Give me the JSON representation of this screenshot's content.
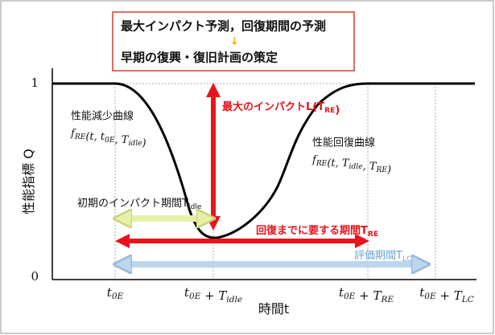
{
  "box": {
    "line1": "最大インパクト予測，回復期間の予測",
    "arrow": "↓",
    "line2": "早期の復興・復旧計画の策定"
  },
  "y_axis": {
    "label": [
      [
        "性能指標 "
      ],
      [
        "Q"
      ]
    ],
    "ticks": [
      "1",
      "0"
    ]
  },
  "x_axis": {
    "label": [
      [
        "時間"
      ],
      [
        "t"
      ]
    ],
    "ticks": [
      [
        [
          "t",
          "0E"
        ]
      ],
      [
        [
          "t",
          "0E"
        ],
        [
          " + T",
          "idle"
        ]
      ],
      [
        [
          "t",
          "0E"
        ],
        [
          " + T",
          "RE"
        ]
      ],
      [
        [
          "t",
          "0E"
        ],
        [
          " + T",
          "LC"
        ]
      ]
    ]
  },
  "decline": {
    "title": "性能減少曲線",
    "formula": [
      [
        "f",
        "RE"
      ],
      [
        "(t, t",
        "0E"
      ],
      [
        ", T",
        "idle"
      ],
      [
        ")"
      ]
    ]
  },
  "recovery": {
    "title": "性能回復曲線",
    "formula": [
      [
        "f",
        "RE"
      ],
      [
        "(t, T",
        "idle"
      ],
      [
        ", T",
        "RE"
      ],
      [
        ")"
      ]
    ]
  },
  "impact": {
    "label": [
      [
        "最大のインパクト"
      ],
      [
        "L(T",
        "RE"
      ],
      [
        ")"
      ]
    ]
  },
  "idle": {
    "label": [
      [
        "初期のインパクト期間"
      ],
      [
        "T",
        "idle"
      ]
    ]
  },
  "recovery_period": {
    "label": [
      [
        "回復までに要する期間"
      ],
      [
        "T",
        "RE"
      ]
    ]
  },
  "evaluation": {
    "label": [
      [
        "評価期間"
      ],
      [
        "T",
        "LC"
      ]
    ]
  }
}
